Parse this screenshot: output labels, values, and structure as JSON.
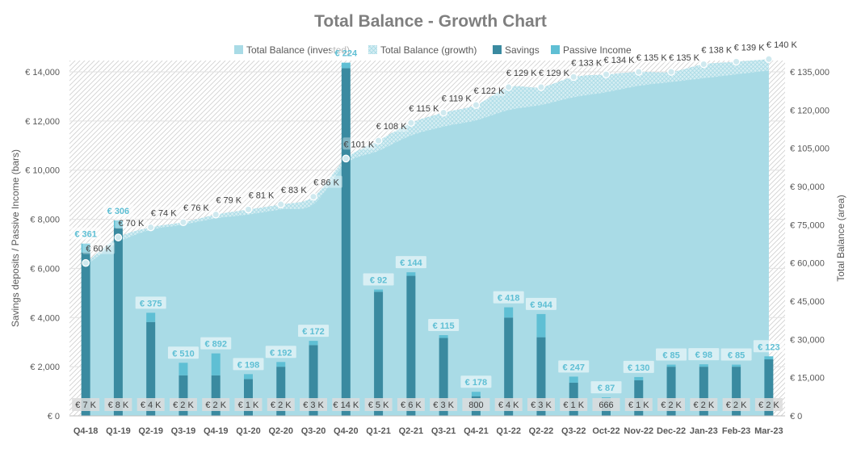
{
  "chart_data": {
    "type": "bar",
    "title": "Total Balance - Growth Chart",
    "ylabel_left": "Savings deposits / Passive Income (bars)",
    "ylabel_right": "Total Balance (area)",
    "left_axis": {
      "min": 0,
      "max": 14000,
      "ticks": [
        "€ 0",
        "€ 2,000",
        "€ 4,000",
        "€ 6,000",
        "€ 8,000",
        "€ 10,000",
        "€ 12,000",
        "€ 14,000"
      ]
    },
    "right_axis": {
      "min": 0,
      "max": 135000,
      "ticks": [
        "€ 0",
        "€ 15,000",
        "€ 30,000",
        "€ 45,000",
        "€ 60,000",
        "€ 75,000",
        "€ 90,000",
        "€ 105,000",
        "€ 120,000",
        "€ 135,000"
      ]
    },
    "legend": {
      "position": "top-center",
      "entries": [
        {
          "name": "Total Balance (invested)",
          "color": "#a9dbe6"
        },
        {
          "name": "Total Balance (growth)",
          "color": "#cde9ef",
          "pattern": "crosshatch"
        },
        {
          "name": "Savings",
          "color": "#3a8aa0"
        },
        {
          "name": "Passive Income",
          "color": "#5fbfd4"
        }
      ]
    },
    "categories": [
      "Q4-18",
      "Q1-19",
      "Q2-19",
      "Q3-19",
      "Q4-19",
      "Q1-20",
      "Q2-20",
      "Q3-20",
      "Q4-20",
      "Q1-21",
      "Q2-21",
      "Q3-21",
      "Q4-21",
      "Q1-22",
      "Q2-22",
      "Q3-22",
      "Oct-22",
      "Nov-22",
      "Dec-22",
      "Jan-23",
      "Feb-23",
      "Mar-23"
    ],
    "series": [
      {
        "name": "Savings",
        "values": [
          6650,
          7650,
          3820,
          1650,
          1650,
          1500,
          2000,
          2880,
          14150,
          5050,
          5700,
          3170,
          800,
          4000,
          3200,
          1350,
          666,
          1450,
          2000,
          2000,
          2000,
          2300
        ]
      },
      {
        "name": "Passive Income",
        "values": [
          361,
          306,
          375,
          510,
          892,
          198,
          192,
          172,
          224,
          92,
          144,
          115,
          178,
          418,
          944,
          247,
          87,
          130,
          85,
          98,
          85,
          123
        ]
      },
      {
        "name": "Total Balance (invested)",
        "values": [
          59000,
          68000,
          73000,
          75000,
          77500,
          79000,
          81000,
          83000,
          99000,
          104000,
          110000,
          113500,
          116000,
          120000,
          122000,
          125000,
          127000,
          129500,
          131000,
          132500,
          134000,
          135500
        ]
      },
      {
        "name": "Total Balance (growth)",
        "values": [
          60000,
          70000,
          74000,
          76000,
          79000,
          81000,
          83000,
          86000,
          101000,
          108000,
          115000,
          119000,
          122000,
          129000,
          129000,
          133000,
          134000,
          135000,
          135000,
          138000,
          139000,
          140000
        ]
      }
    ],
    "passive_income_labels": [
      "€ 361",
      "€ 306",
      "€ 375",
      "€ 510",
      "€ 892",
      "€ 198",
      "€ 192",
      "€ 172",
      "€ 224",
      "€ 92",
      "€ 144",
      "€ 115",
      "€ 178",
      "€ 418",
      "€ 944",
      "€ 247",
      "€ 87",
      "€ 130",
      "€ 85",
      "€ 98",
      "€ 85",
      "€ 123"
    ],
    "savings_labels": [
      "€ 7 K",
      "€ 8 K",
      "€ 4 K",
      "€ 2 K",
      "€ 2 K",
      "€ 1 K",
      "€ 2 K",
      "€ 3 K",
      "€ 14 K",
      "€ 5 K",
      "€ 6 K",
      "€ 3 K",
      "800",
      "€ 4 K",
      "€ 3 K",
      "€ 1 K",
      "666",
      "€ 1 K",
      "€ 2 K",
      "€ 2 K",
      "€ 2 K",
      "€ 2 K"
    ],
    "balance_labels": [
      "€ 60 K",
      "€ 70 K",
      "€ 74 K",
      "€ 76 K",
      "€ 79 K",
      "€ 81 K",
      "€ 83 K",
      "€ 86 K",
      "€ 101 K",
      "€ 108 K",
      "€ 115 K",
      "€ 119 K",
      "€ 122 K",
      "€ 129 K",
      "€ 129 K",
      "€ 133 K",
      "€ 134 K",
      "€ 135 K",
      "€ 135 K",
      "€ 138 K",
      "€ 139 K",
      "€ 140 K"
    ]
  }
}
